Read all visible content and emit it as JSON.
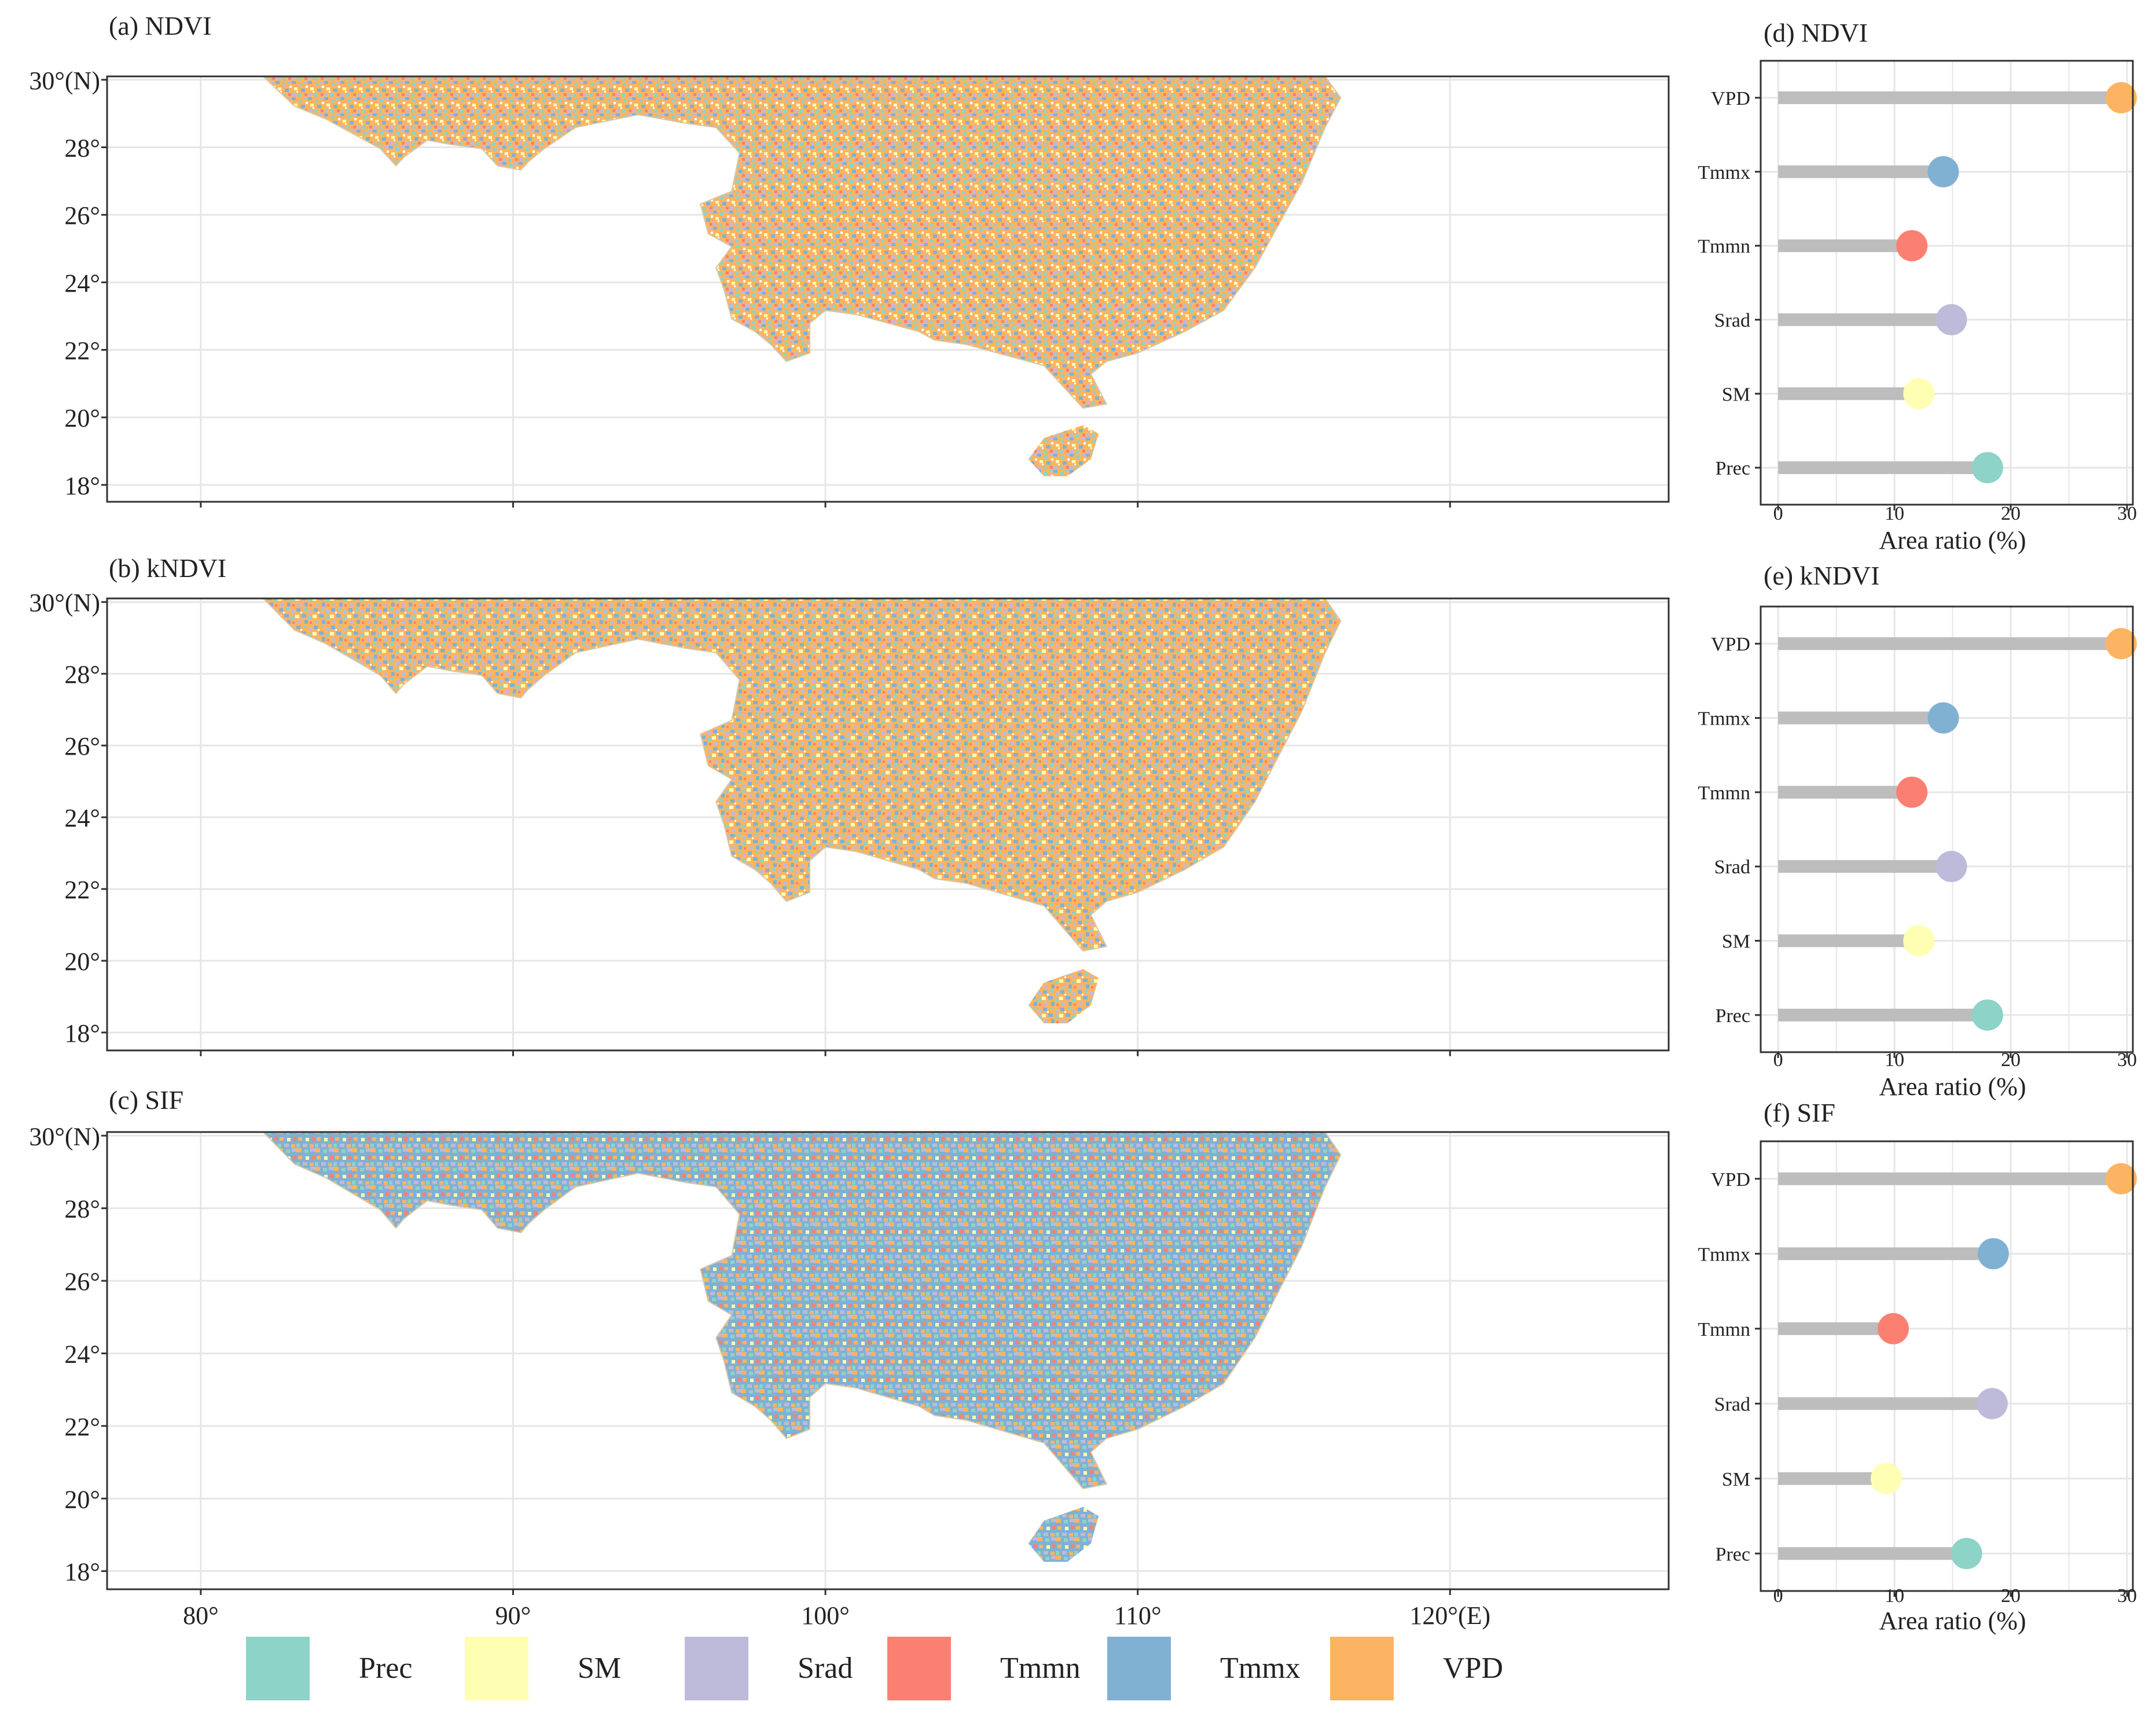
{
  "colors": {
    "Prec": "#8dd3c7",
    "SM": "#ffffb3",
    "Srad": "#bebada",
    "Tmmn": "#fb8072",
    "Tmmx": "#80b1d3",
    "VPD": "#fdb462",
    "stem": "#bdbdbd",
    "grid": "#e6e6e6",
    "panel_border": "#333333"
  },
  "maps": [
    {
      "label": "(a) NDVI",
      "y_ticks": [
        "30°(N)",
        "28°",
        "26°",
        "24°",
        "22°",
        "20°",
        "18°"
      ]
    },
    {
      "label": "(b) kNDVI",
      "y_ticks": [
        "30°(N)",
        "28°",
        "26°",
        "24°",
        "22°",
        "20°",
        "18°"
      ]
    },
    {
      "label": "(c) SIF",
      "y_ticks": [
        "30°(N)",
        "28°",
        "26°",
        "24°",
        "22°",
        "20°",
        "18°"
      ]
    }
  ],
  "map_axis": {
    "lat_values": [
      30,
      28,
      26,
      24,
      22,
      20,
      18
    ],
    "lon_values": [
      80,
      90,
      100,
      110,
      120
    ],
    "x_tick_labels": [
      "80°",
      "90°",
      "100°",
      "110°",
      "120°(E)"
    ],
    "lon_range": [
      77,
      127
    ],
    "lat_range": [
      17.5,
      30.1
    ]
  },
  "chart_data": [
    {
      "type": "lollipop",
      "title": "(d) NDVI",
      "categories": [
        "VPD",
        "Tmmx",
        "Tmmn",
        "Srad",
        "SM",
        "Prec"
      ],
      "values": [
        29.5,
        14.2,
        11.5,
        14.9,
        12.1,
        18.0
      ],
      "xlabel": "Area ratio (%)",
      "xlim": [
        -1.5,
        30.5
      ],
      "xticks": [
        0,
        10,
        20,
        30
      ]
    },
    {
      "type": "lollipop",
      "title": "(e) kNDVI",
      "categories": [
        "VPD",
        "Tmmx",
        "Tmmn",
        "Srad",
        "SM",
        "Prec"
      ],
      "values": [
        29.5,
        14.2,
        11.5,
        14.9,
        12.1,
        18.0
      ],
      "xlabel": "Area ratio (%)",
      "xlim": [
        -1.5,
        30.5
      ],
      "xticks": [
        0,
        10,
        20,
        30
      ]
    },
    {
      "type": "lollipop",
      "title": "(f) SIF",
      "categories": [
        "VPD",
        "Tmmx",
        "Tmmn",
        "Srad",
        "SM",
        "Prec"
      ],
      "values": [
        29.5,
        18.5,
        9.9,
        18.4,
        9.3,
        16.2
      ],
      "xlabel": "Area ratio (%)",
      "xlim": [
        -1.5,
        30.5
      ],
      "xticks": [
        0,
        10,
        20,
        30
      ]
    }
  ],
  "legend": {
    "items": [
      {
        "key": "Prec",
        "label": "Prec"
      },
      {
        "key": "SM",
        "label": "SM"
      },
      {
        "key": "Srad",
        "label": "Srad"
      },
      {
        "key": "Tmmn",
        "label": "Tmmn"
      },
      {
        "key": "Tmmx",
        "label": "Tmmx"
      },
      {
        "key": "VPD",
        "label": "VPD"
      }
    ]
  }
}
